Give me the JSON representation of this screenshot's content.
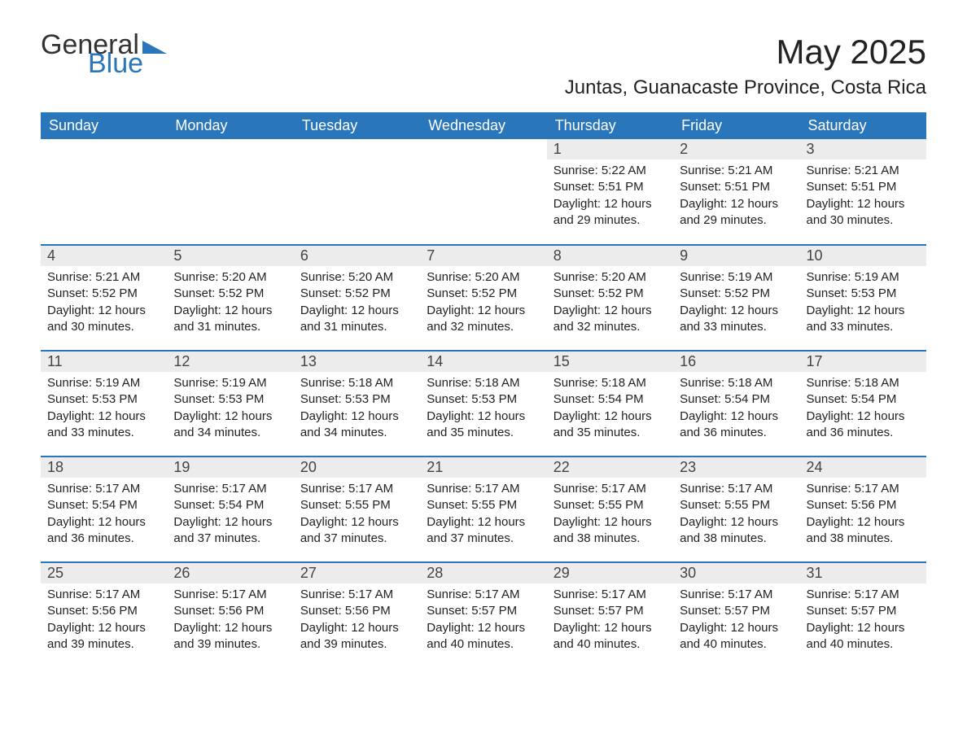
{
  "logo": {
    "word1": "General",
    "word2": "Blue"
  },
  "title": "May 2025",
  "location": "Juntas, Guanacaste Province, Costa Rica",
  "colors": {
    "header_bg": "#2a76bb",
    "header_text": "#ffffff",
    "daynum_bg": "#ececec",
    "divider": "#2a76bb",
    "logo_general": "#333333",
    "logo_blue": "#2a76bb",
    "page_bg": "#ffffff",
    "body_text": "#222222"
  },
  "typography": {
    "month_title_fontsize": 42,
    "location_fontsize": 24,
    "weekday_fontsize": 18,
    "daynum_fontsize": 18,
    "body_fontsize": 15
  },
  "weekdays": [
    "Sunday",
    "Monday",
    "Tuesday",
    "Wednesday",
    "Thursday",
    "Friday",
    "Saturday"
  ],
  "weeks": [
    [
      null,
      null,
      null,
      null,
      {
        "n": "1",
        "sunrise": "Sunrise: 5:22 AM",
        "sunset": "Sunset: 5:51 PM",
        "daylight": "Daylight: 12 hours and 29 minutes."
      },
      {
        "n": "2",
        "sunrise": "Sunrise: 5:21 AM",
        "sunset": "Sunset: 5:51 PM",
        "daylight": "Daylight: 12 hours and 29 minutes."
      },
      {
        "n": "3",
        "sunrise": "Sunrise: 5:21 AM",
        "sunset": "Sunset: 5:51 PM",
        "daylight": "Daylight: 12 hours and 30 minutes."
      }
    ],
    [
      {
        "n": "4",
        "sunrise": "Sunrise: 5:21 AM",
        "sunset": "Sunset: 5:52 PM",
        "daylight": "Daylight: 12 hours and 30 minutes."
      },
      {
        "n": "5",
        "sunrise": "Sunrise: 5:20 AM",
        "sunset": "Sunset: 5:52 PM",
        "daylight": "Daylight: 12 hours and 31 minutes."
      },
      {
        "n": "6",
        "sunrise": "Sunrise: 5:20 AM",
        "sunset": "Sunset: 5:52 PM",
        "daylight": "Daylight: 12 hours and 31 minutes."
      },
      {
        "n": "7",
        "sunrise": "Sunrise: 5:20 AM",
        "sunset": "Sunset: 5:52 PM",
        "daylight": "Daylight: 12 hours and 32 minutes."
      },
      {
        "n": "8",
        "sunrise": "Sunrise: 5:20 AM",
        "sunset": "Sunset: 5:52 PM",
        "daylight": "Daylight: 12 hours and 32 minutes."
      },
      {
        "n": "9",
        "sunrise": "Sunrise: 5:19 AM",
        "sunset": "Sunset: 5:52 PM",
        "daylight": "Daylight: 12 hours and 33 minutes."
      },
      {
        "n": "10",
        "sunrise": "Sunrise: 5:19 AM",
        "sunset": "Sunset: 5:53 PM",
        "daylight": "Daylight: 12 hours and 33 minutes."
      }
    ],
    [
      {
        "n": "11",
        "sunrise": "Sunrise: 5:19 AM",
        "sunset": "Sunset: 5:53 PM",
        "daylight": "Daylight: 12 hours and 33 minutes."
      },
      {
        "n": "12",
        "sunrise": "Sunrise: 5:19 AM",
        "sunset": "Sunset: 5:53 PM",
        "daylight": "Daylight: 12 hours and 34 minutes."
      },
      {
        "n": "13",
        "sunrise": "Sunrise: 5:18 AM",
        "sunset": "Sunset: 5:53 PM",
        "daylight": "Daylight: 12 hours and 34 minutes."
      },
      {
        "n": "14",
        "sunrise": "Sunrise: 5:18 AM",
        "sunset": "Sunset: 5:53 PM",
        "daylight": "Daylight: 12 hours and 35 minutes."
      },
      {
        "n": "15",
        "sunrise": "Sunrise: 5:18 AM",
        "sunset": "Sunset: 5:54 PM",
        "daylight": "Daylight: 12 hours and 35 minutes."
      },
      {
        "n": "16",
        "sunrise": "Sunrise: 5:18 AM",
        "sunset": "Sunset: 5:54 PM",
        "daylight": "Daylight: 12 hours and 36 minutes."
      },
      {
        "n": "17",
        "sunrise": "Sunrise: 5:18 AM",
        "sunset": "Sunset: 5:54 PM",
        "daylight": "Daylight: 12 hours and 36 minutes."
      }
    ],
    [
      {
        "n": "18",
        "sunrise": "Sunrise: 5:17 AM",
        "sunset": "Sunset: 5:54 PM",
        "daylight": "Daylight: 12 hours and 36 minutes."
      },
      {
        "n": "19",
        "sunrise": "Sunrise: 5:17 AM",
        "sunset": "Sunset: 5:54 PM",
        "daylight": "Daylight: 12 hours and 37 minutes."
      },
      {
        "n": "20",
        "sunrise": "Sunrise: 5:17 AM",
        "sunset": "Sunset: 5:55 PM",
        "daylight": "Daylight: 12 hours and 37 minutes."
      },
      {
        "n": "21",
        "sunrise": "Sunrise: 5:17 AM",
        "sunset": "Sunset: 5:55 PM",
        "daylight": "Daylight: 12 hours and 37 minutes."
      },
      {
        "n": "22",
        "sunrise": "Sunrise: 5:17 AM",
        "sunset": "Sunset: 5:55 PM",
        "daylight": "Daylight: 12 hours and 38 minutes."
      },
      {
        "n": "23",
        "sunrise": "Sunrise: 5:17 AM",
        "sunset": "Sunset: 5:55 PM",
        "daylight": "Daylight: 12 hours and 38 minutes."
      },
      {
        "n": "24",
        "sunrise": "Sunrise: 5:17 AM",
        "sunset": "Sunset: 5:56 PM",
        "daylight": "Daylight: 12 hours and 38 minutes."
      }
    ],
    [
      {
        "n": "25",
        "sunrise": "Sunrise: 5:17 AM",
        "sunset": "Sunset: 5:56 PM",
        "daylight": "Daylight: 12 hours and 39 minutes."
      },
      {
        "n": "26",
        "sunrise": "Sunrise: 5:17 AM",
        "sunset": "Sunset: 5:56 PM",
        "daylight": "Daylight: 12 hours and 39 minutes."
      },
      {
        "n": "27",
        "sunrise": "Sunrise: 5:17 AM",
        "sunset": "Sunset: 5:56 PM",
        "daylight": "Daylight: 12 hours and 39 minutes."
      },
      {
        "n": "28",
        "sunrise": "Sunrise: 5:17 AM",
        "sunset": "Sunset: 5:57 PM",
        "daylight": "Daylight: 12 hours and 40 minutes."
      },
      {
        "n": "29",
        "sunrise": "Sunrise: 5:17 AM",
        "sunset": "Sunset: 5:57 PM",
        "daylight": "Daylight: 12 hours and 40 minutes."
      },
      {
        "n": "30",
        "sunrise": "Sunrise: 5:17 AM",
        "sunset": "Sunset: 5:57 PM",
        "daylight": "Daylight: 12 hours and 40 minutes."
      },
      {
        "n": "31",
        "sunrise": "Sunrise: 5:17 AM",
        "sunset": "Sunset: 5:57 PM",
        "daylight": "Daylight: 12 hours and 40 minutes."
      }
    ]
  ]
}
